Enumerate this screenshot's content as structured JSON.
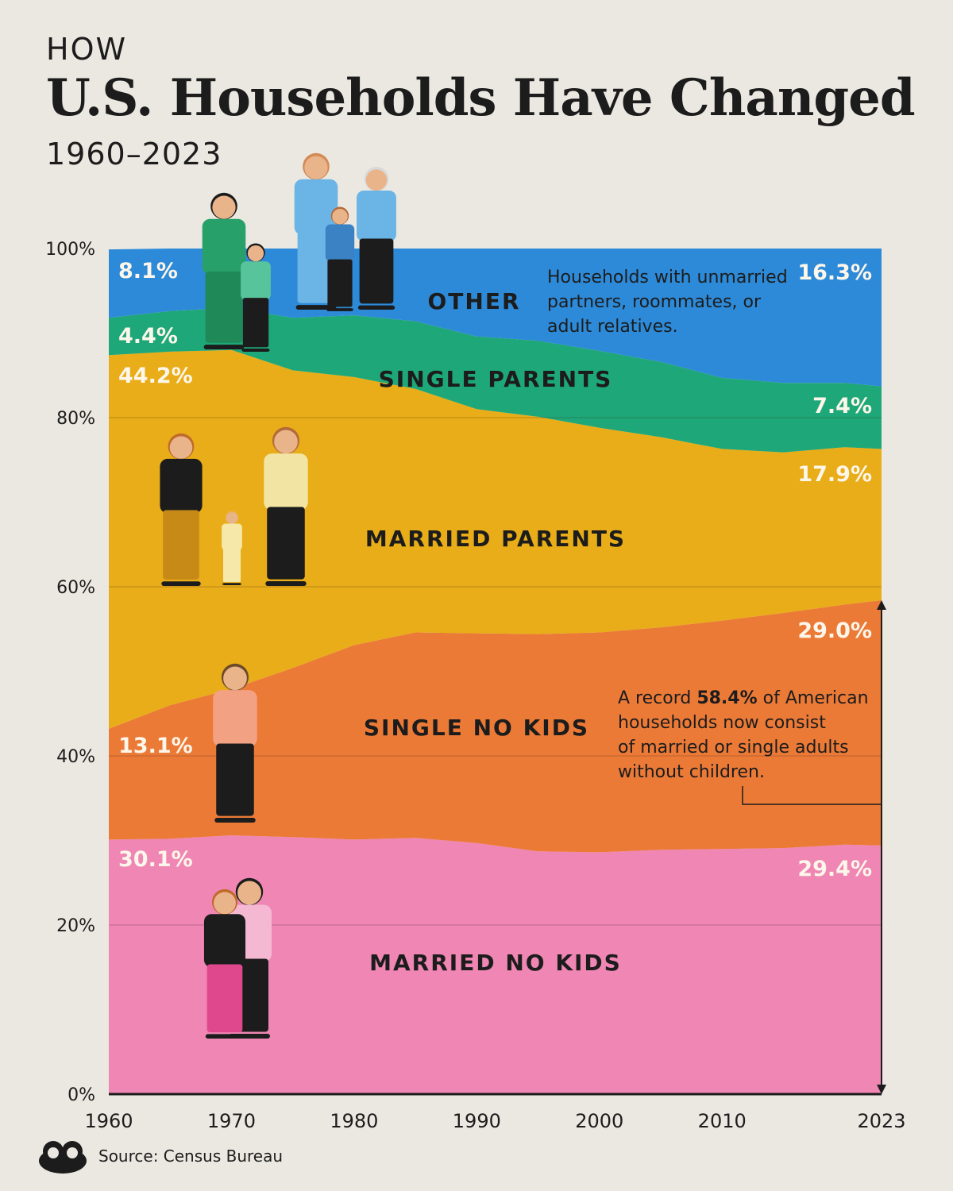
{
  "header": {
    "kicker": "HOW",
    "title": "U.S. Households Have Changed",
    "subtitle": "1960–2023"
  },
  "source": "Source: Census Bureau",
  "colors": {
    "background": "#ebe8e1",
    "married_no_kids": "#ef86b3",
    "single_no_kids": "#ec7a37",
    "married_parents": "#e8ad18",
    "single_parents": "#1ea778",
    "other": "#2d8ad8"
  },
  "annotations": {
    "other_note": [
      "Households with unmarried",
      "partners, roommates, or",
      "adult relatives."
    ],
    "record_note": {
      "pre": "A record ",
      "highlight": "58.4%",
      "post": " of American",
      "lines": [
        "households now consist",
        "of married or single adults",
        "without children."
      ]
    }
  },
  "chart_data": {
    "type": "area",
    "stacked": true,
    "title": "U.S. Households Have Changed",
    "x_ticks": [
      "1960",
      "1970",
      "1980",
      "1990",
      "2000",
      "2010",
      "2023"
    ],
    "y_ticks": [
      "0%",
      "20%",
      "40%",
      "60%",
      "80%",
      "100%"
    ],
    "ylim": [
      0,
      100
    ],
    "xlim": [
      1960,
      2023
    ],
    "grid": true,
    "x": [
      1960,
      1965,
      1970,
      1975,
      1980,
      1985,
      1990,
      1995,
      2000,
      2005,
      2010,
      2015,
      2020,
      2023
    ],
    "series": [
      {
        "name": "MARRIED NO KIDS",
        "color_key": "married_no_kids",
        "values": [
          30.1,
          30.2,
          30.6,
          30.4,
          30.1,
          30.3,
          29.7,
          28.7,
          28.6,
          28.9,
          29.0,
          29.1,
          29.5,
          29.4
        ],
        "start_label": "30.1%",
        "end_label": "29.4%"
      },
      {
        "name": "SINGLE NO KIDS",
        "color_key": "single_no_kids",
        "values": [
          13.1,
          15.8,
          17.3,
          20.0,
          23.0,
          24.3,
          24.8,
          25.7,
          26.0,
          26.3,
          27.0,
          27.8,
          28.4,
          29.0
        ],
        "start_label": "13.1%",
        "end_label": "29.0%"
      },
      {
        "name": "MARRIED PARENTS",
        "color_key": "married_parents",
        "values": [
          44.2,
          41.8,
          40.1,
          35.2,
          31.7,
          28.8,
          26.5,
          25.7,
          24.2,
          22.5,
          20.3,
          19.0,
          18.6,
          17.9
        ],
        "start_label": "44.2%",
        "end_label": "17.9%"
      },
      {
        "name": "SINGLE PARENTS",
        "color_key": "single_parents",
        "values": [
          4.4,
          4.8,
          5.0,
          6.2,
          7.3,
          8.0,
          8.6,
          9.0,
          9.1,
          8.9,
          8.4,
          8.2,
          7.6,
          7.4
        ],
        "start_label": "4.4%",
        "end_label": "7.4%"
      },
      {
        "name": "OTHER",
        "color_key": "other",
        "values": [
          8.1,
          7.4,
          7.0,
          8.2,
          7.9,
          8.6,
          10.4,
          10.9,
          12.1,
          13.4,
          15.3,
          15.9,
          15.9,
          16.3
        ],
        "start_label": "8.1%",
        "end_label": "16.3%"
      }
    ]
  }
}
